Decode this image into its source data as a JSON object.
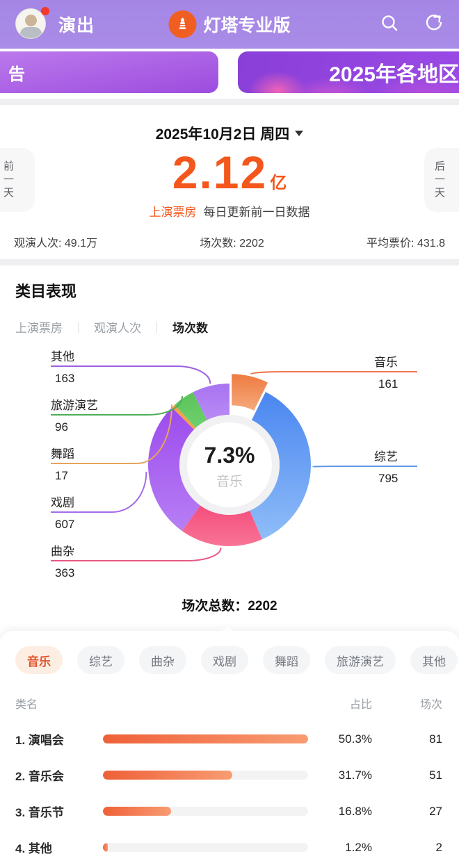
{
  "header": {
    "nav_title": "演出",
    "app_name": "灯塔专业版",
    "banner_left_text": "告",
    "banner_right_text": "2025年各地区"
  },
  "date_card": {
    "date": "2025年10月2日 周四",
    "prev_label": "前一天",
    "next_label": "后一天",
    "main_value": "2.12",
    "main_unit": "亿",
    "main_label": "上演票房",
    "main_note": "每日更新前一日数据",
    "stats": [
      {
        "text": "观演人次: 49.1万"
      },
      {
        "text": "场次数: 2202"
      },
      {
        "text": "平均票价: 431.8"
      }
    ]
  },
  "category_section": {
    "title": "类目表现",
    "tabs": [
      {
        "label": "上演票房",
        "active": false
      },
      {
        "label": "观演人次",
        "active": false
      },
      {
        "label": "场次数",
        "active": true
      }
    ],
    "total_label": "场次总数：2202"
  },
  "chart_data": {
    "type": "pie",
    "title": "类目表现 - 场次数",
    "total": 2202,
    "center_text": {
      "percent": "7.3%",
      "label": "音乐"
    },
    "legend_position": "around",
    "slices": [
      {
        "label": "音乐",
        "value": 161,
        "color": "#ee7b40",
        "color2": "#f5a97d",
        "line": "#f07850",
        "exploded": true,
        "side": "right"
      },
      {
        "label": "综艺",
        "value": 795,
        "color": "#4a86f0",
        "color2": "#8fbdf8",
        "line": "#5e97e8",
        "exploded": false,
        "side": "right"
      },
      {
        "label": "曲杂",
        "value": 363,
        "color": "#f44e7b",
        "color2": "#f97397",
        "line": "#e75983",
        "exploded": false,
        "side": "left"
      },
      {
        "label": "戏剧",
        "value": 607,
        "color": "#9c4bec",
        "color2": "#b77ff5",
        "line": "#a36be8",
        "exploded": false,
        "side": "left"
      },
      {
        "label": "舞蹈",
        "value": 17,
        "color": "#f0a14e",
        "color2": "#f0a14e",
        "line": "#e8a45c",
        "exploded": false,
        "side": "left"
      },
      {
        "label": "旅游演艺",
        "value": 96,
        "color": "#5bc35a",
        "color2": "#6ed06e",
        "line": "#4cae57",
        "exploded": false,
        "side": "left"
      },
      {
        "label": "其他",
        "value": 163,
        "color": "#a873f0",
        "color2": "#b98bf5",
        "line": "#9b5fe0",
        "exploded": false,
        "side": "left"
      }
    ]
  },
  "filter_pills": [
    {
      "label": "音乐",
      "active": true
    },
    {
      "label": "综艺",
      "active": false
    },
    {
      "label": "曲杂",
      "active": false
    },
    {
      "label": "戏剧",
      "active": false
    },
    {
      "label": "舞蹈",
      "active": false
    },
    {
      "label": "旅游演艺",
      "active": false
    },
    {
      "label": "其他",
      "active": false
    }
  ],
  "table": {
    "headers": {
      "name": "类名",
      "percent": "占比",
      "count": "场次"
    },
    "rows": [
      {
        "rank": "1.",
        "name": "演唱会",
        "percent": "50.3%",
        "count": "81"
      },
      {
        "rank": "2.",
        "name": "音乐会",
        "percent": "31.7%",
        "count": "51"
      },
      {
        "rank": "3.",
        "name": "音乐节",
        "percent": "16.8%",
        "count": "27"
      },
      {
        "rank": "4.",
        "name": "其他",
        "percent": "1.2%",
        "count": "2"
      }
    ]
  }
}
